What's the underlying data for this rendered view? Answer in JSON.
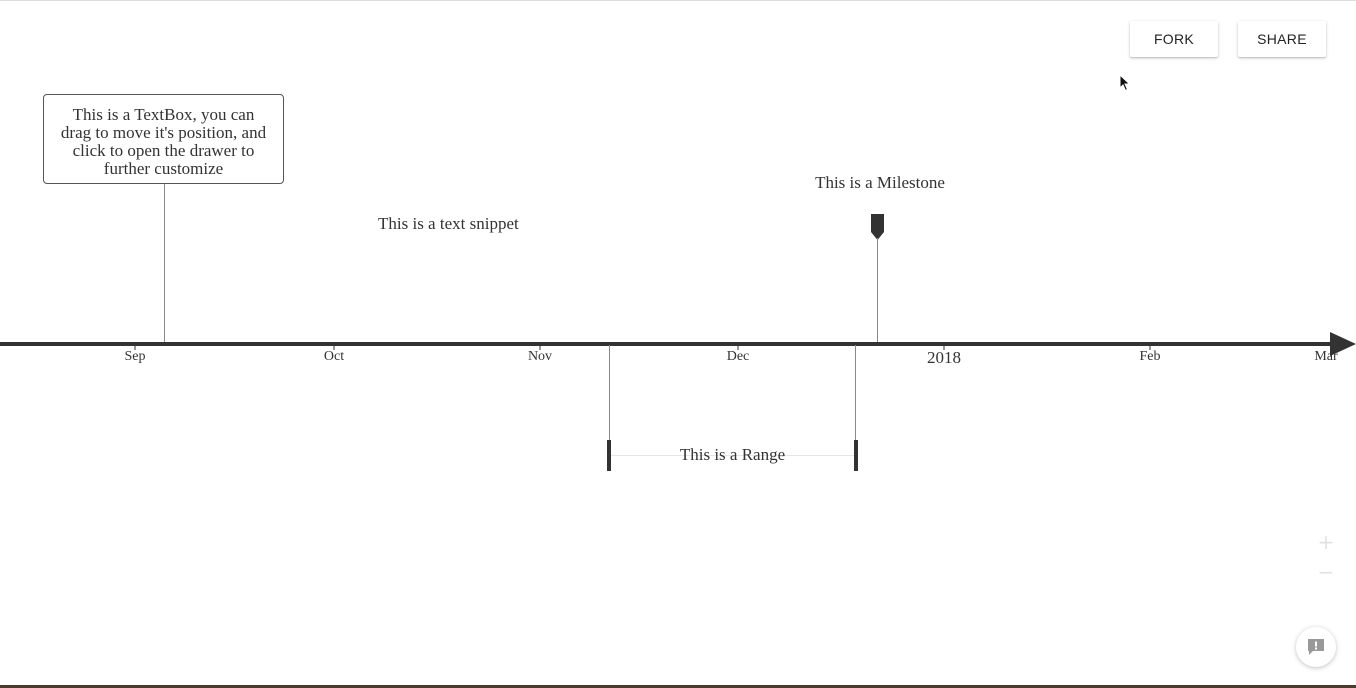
{
  "toolbar": {
    "fork_label": "FORK",
    "share_label": "SHARE"
  },
  "timeline": {
    "textbox": {
      "lines": [
        "This is a TextBox, you can",
        "drag to move it's position, and",
        "click to open the drawer to",
        "further customize"
      ]
    },
    "snippet": "This is a text snippet",
    "milestone": "This is a Milestone",
    "range": "This is a Range",
    "ticks": [
      "Sep",
      "Oct",
      "Nov",
      "Dec",
      "2018",
      "Feb",
      "Mar"
    ]
  },
  "zoom": {
    "in_symbol": "+",
    "out_symbol": "−"
  },
  "icons": {
    "cursor": "mouse-pointer-icon",
    "feedback": "feedback-icon",
    "milestone": "milestone-marker-icon",
    "axis_arrow": "arrow-right-icon"
  },
  "colors": {
    "axis": "#333333",
    "feedback_icon": "#999999"
  }
}
